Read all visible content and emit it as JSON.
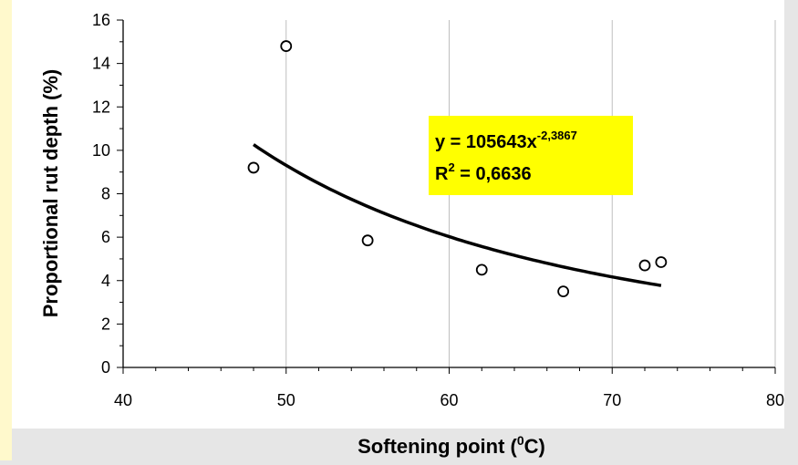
{
  "chart_data": {
    "type": "scatter",
    "xlabel": "Softening point (",
    "xlabel_sup": "0",
    "xlabel_tail": "C)",
    "ylabel": "Proportional rut depth (%)",
    "xlim": [
      40,
      80
    ],
    "ylim": [
      0,
      16
    ],
    "xticks": [
      "40",
      "50",
      "60",
      "70",
      "80"
    ],
    "yticks": [
      "0",
      "2",
      "4",
      "6",
      "8",
      "10",
      "12",
      "14",
      "16"
    ],
    "points": [
      {
        "x": 48,
        "y": 9.2
      },
      {
        "x": 50,
        "y": 14.8
      },
      {
        "x": 55,
        "y": 5.85
      },
      {
        "x": 62,
        "y": 4.5
      },
      {
        "x": 67,
        "y": 3.5
      },
      {
        "x": 72,
        "y": 4.7
      },
      {
        "x": 73,
        "y": 4.85
      }
    ],
    "trendline": {
      "type": "power",
      "coefficient": 105643,
      "exponent": -2.3867,
      "x_range": [
        48,
        73
      ]
    },
    "annotation": {
      "equation_main": "y = 105643x",
      "equation_exp": "-2,3867",
      "r2_prefix": "R",
      "r2_sup": "2",
      "r2_value": " = 0,6636",
      "background": "#ffff00"
    },
    "grid": "vertical",
    "colors": {
      "plot_bg": "#ffffff",
      "outer_bg": "#e6e6e6",
      "left_strip": "#fff9cc",
      "marker": "#000000",
      "trend": "#000000"
    }
  }
}
